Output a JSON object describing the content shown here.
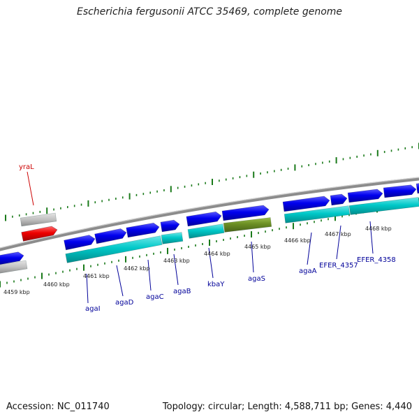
{
  "title": "Escherichia fergusonii ATCC 35469, complete genome",
  "footer": {
    "accession": "Accession: NC_011740",
    "topology": "Topology: circular; Length: 4,588,711 bp; Genes: 4,440"
  },
  "colors": {
    "backbone": "#808080",
    "tick": "#1a7a1a",
    "forward_gene": "#0000ee",
    "cds": "#00c8c8",
    "cds_alt": "#6b8e23",
    "pseudo": "#c0c0c0",
    "highlight": "#ee0000",
    "gene_label": "#000099",
    "highlight_label": "#cc0000"
  },
  "kbp_labels": [
    "4459 kbp",
    "4460 kbp",
    "4461 kbp",
    "4462 kbp",
    "4463 kbp",
    "4464 kbp",
    "4465 kbp",
    "4466 kbp",
    "4467 kbp",
    "4468 kbp"
  ],
  "gene_labels": [
    "yraL",
    "agaI",
    "agaD",
    "agaC",
    "agaB",
    "kbaY",
    "agaS",
    "agaA",
    "EFER_4357",
    "EFER_4358"
  ]
}
